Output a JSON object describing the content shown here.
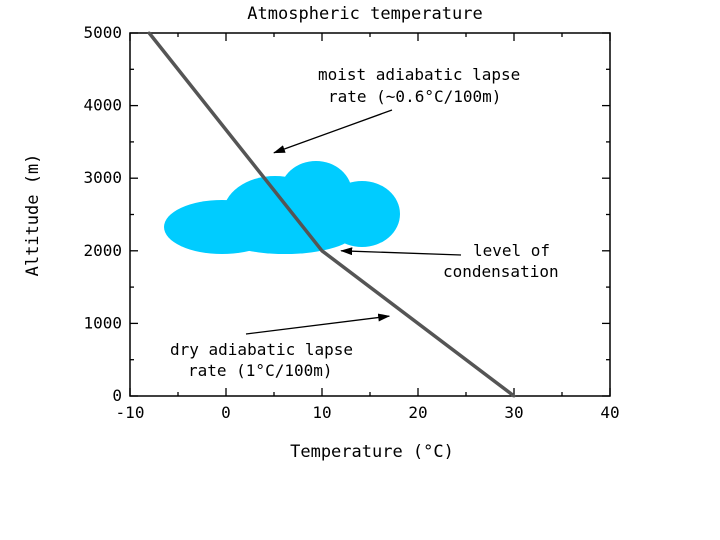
{
  "chart_data": {
    "type": "line",
    "title": "Atmospheric temperature",
    "xlabel": "Temperature (°C)",
    "ylabel": "Altitude (m)",
    "xlim": [
      -10,
      40
    ],
    "ylim": [
      0,
      5000
    ],
    "xticks": [
      "-10",
      "0",
      "10",
      "20",
      "30",
      "40"
    ],
    "yticks": [
      "0",
      "1000",
      "2000",
      "3000",
      "4000",
      "5000"
    ],
    "grid": false,
    "legend": "none",
    "series": [
      {
        "x": [
          30,
          10,
          -8
        ],
        "y": [
          0,
          2000,
          5000
        ],
        "color": "#555555"
      }
    ],
    "cloud_color": "#00ccff",
    "annotations": [
      {
        "lines": [
          "moist adiabatic lapse",
          "rate (~0.6°C/100m)"
        ],
        "target_x": 5,
        "target_y": 3350
      },
      {
        "lines": [
          "level of",
          "condensation"
        ],
        "target_x": 12,
        "target_y": 2000
      },
      {
        "lines": [
          "dry adiabatic lapse",
          "rate (1°C/100m)"
        ],
        "target_x": 17,
        "target_y": 1100
      }
    ]
  }
}
